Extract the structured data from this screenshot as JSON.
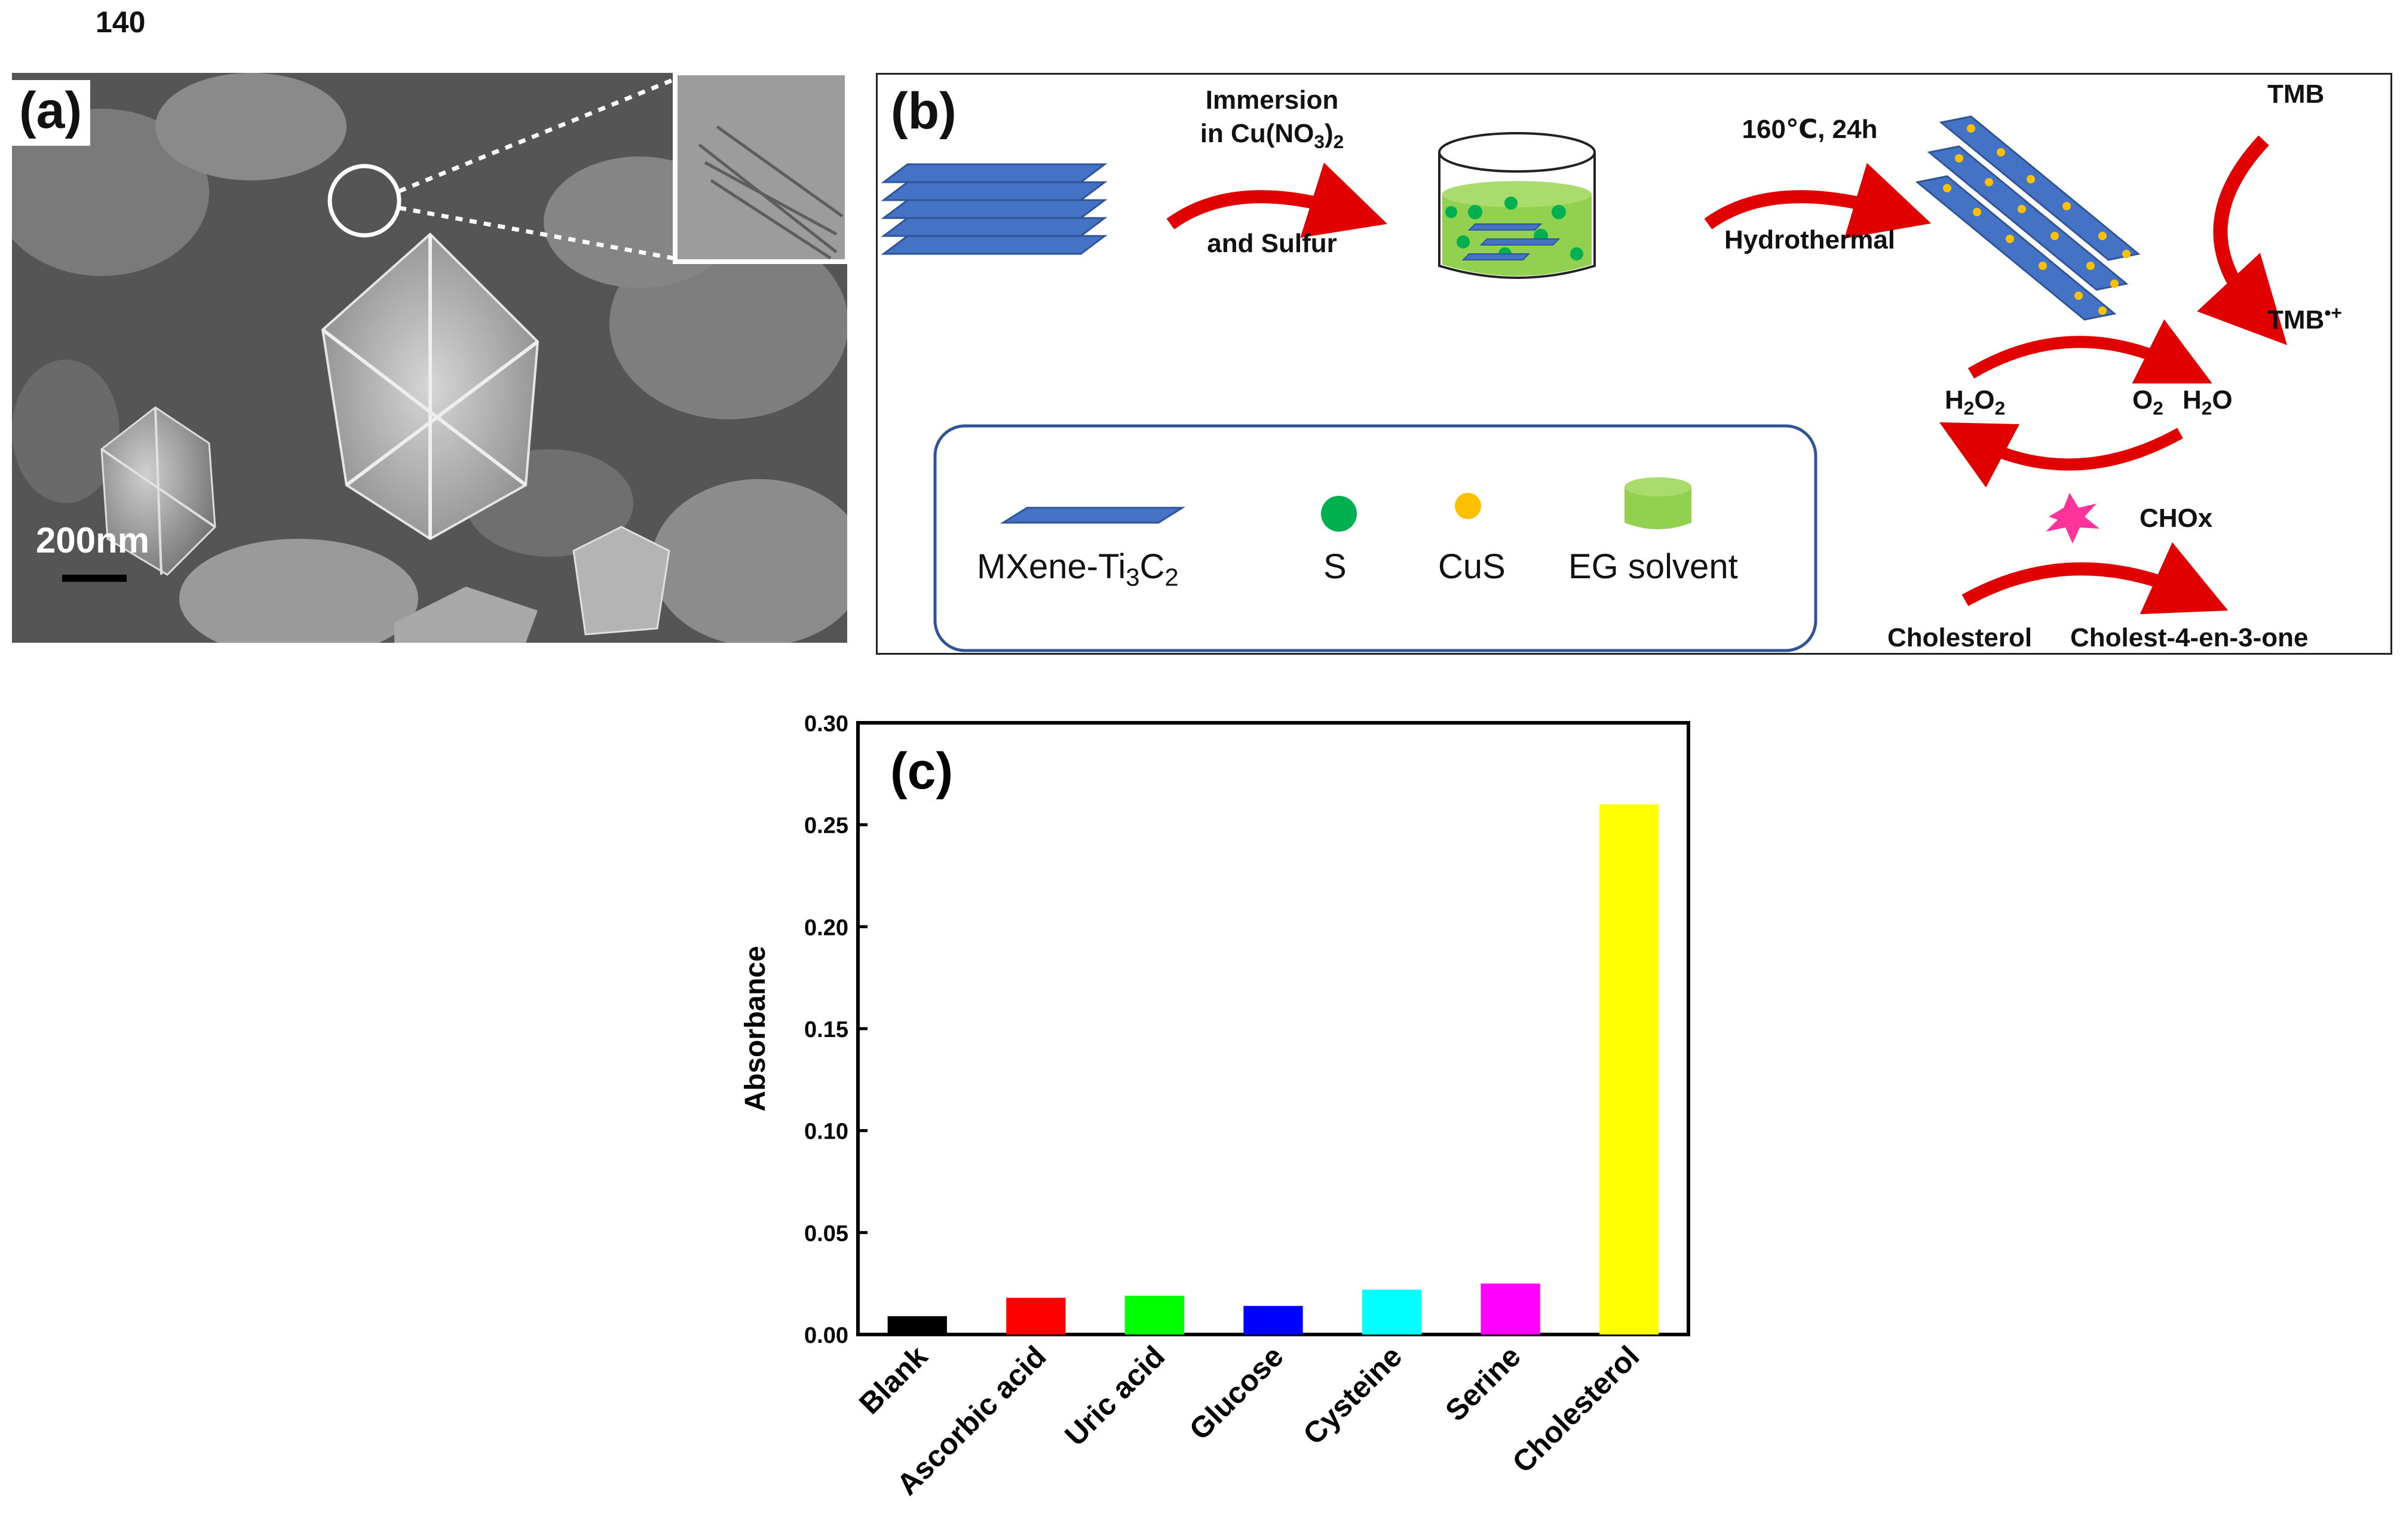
{
  "page_number": "140",
  "panel_a": {
    "label": "(a)",
    "scale_label": "200nm"
  },
  "panel_b": {
    "label": "(b)",
    "step1": {
      "line1": "Immersion",
      "line2_prefix": "in Cu(NO",
      "line2_sub": "3",
      "line2_close": ")",
      "line2_sub2": "2",
      "line3": "and Sulfur"
    },
    "step2": {
      "line1": "160℃, 24h",
      "line2": "Hydrothermal"
    },
    "tmb": "TMB",
    "tmb_ox": "TMB",
    "tmb_ox_sup": "•+",
    "h2o2_h": "H",
    "h2o2_s1": "2",
    "h2o2_o": "O",
    "h2o2_s2": "2",
    "o2_o": "O",
    "o2_s": "2",
    "h2o_h": "H",
    "h2o_s": "2",
    "h2o_o": "O",
    "chox": "CHOx",
    "cholesterol": "Cholesterol",
    "cholestenone": "Cholest-4-en-3-one",
    "legend": {
      "mxene_prefix": "MXene-Ti",
      "mxene_s1": "3",
      "mxene_c": "C",
      "mxene_s2": "2",
      "s": "S",
      "cus": "CuS",
      "eg": "EG solvent"
    },
    "colors": {
      "mxene": "#4472c4",
      "sulfur": "#00b050",
      "cus": "#ffc000",
      "eg": "#92d050",
      "arrow": "#e00000",
      "chox": "#ff3399"
    }
  },
  "chart_data": {
    "type": "bar",
    "title": "",
    "panel_label": "(c)",
    "xlabel": "",
    "ylabel": "Absorbance",
    "ylim": [
      0,
      0.3
    ],
    "yticks": [
      "0.00",
      "0.05",
      "0.10",
      "0.15",
      "0.20",
      "0.25",
      "0.30"
    ],
    "categories": [
      "Blank",
      "Ascorbic acid",
      "Uric acid",
      "Glucose",
      "Cysteine",
      "Serine",
      "Cholesterol"
    ],
    "values": [
      0.009,
      0.018,
      0.019,
      0.014,
      0.022,
      0.025,
      0.26
    ],
    "colors": [
      "#000000",
      "#ff0000",
      "#00ff00",
      "#0000ff",
      "#00ffff",
      "#ff00ff",
      "#ffff00"
    ],
    "grid": false,
    "legend": "none"
  }
}
